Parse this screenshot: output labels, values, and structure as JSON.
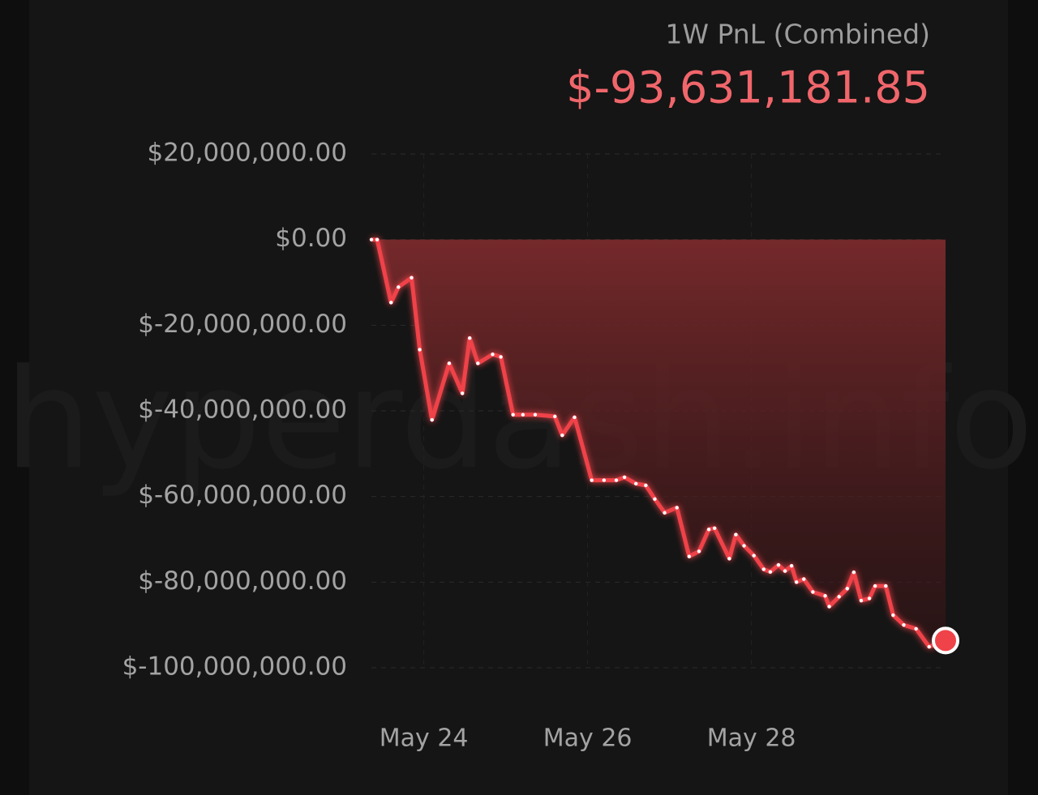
{
  "chart_data": {
    "type": "line",
    "title": "1W PnL (Combined)",
    "subtitle": "$-93,631,181.85",
    "watermark": "hyperdash.info",
    "x": [
      23.36,
      23.43,
      23.6,
      23.69,
      23.85,
      23.95,
      24.1,
      24.31,
      24.47,
      24.56,
      24.66,
      24.84,
      24.94,
      25.09,
      25.21,
      25.36,
      25.6,
      25.69,
      25.84,
      26.05,
      26.2,
      26.35,
      26.45,
      26.59,
      26.71,
      26.82,
      26.94,
      27.09,
      27.24,
      27.36,
      27.48,
      27.55,
      27.73,
      27.81,
      27.91,
      28.03,
      28.15,
      28.23,
      28.33,
      28.41,
      28.49,
      28.55,
      28.64,
      28.75,
      28.9,
      28.95,
      29.07,
      29.17,
      29.25,
      29.34,
      29.44,
      29.51,
      29.64,
      29.73,
      29.86,
      30.01,
      30.17,
      30.37
    ],
    "values": [
      0,
      0,
      -14700000,
      -11100000,
      -8900000,
      -25700000,
      -42100000,
      -28900000,
      -35900000,
      -23000000,
      -28900000,
      -26800000,
      -27400000,
      -40900000,
      -40900000,
      -40900000,
      -41300000,
      -45700000,
      -41500000,
      -56200000,
      -56200000,
      -56200000,
      -55500000,
      -57000000,
      -57400000,
      -60600000,
      -63800000,
      -62600000,
      -74000000,
      -72800000,
      -67700000,
      -67400000,
      -74500000,
      -68900000,
      -71500000,
      -73800000,
      -77000000,
      -77600000,
      -76000000,
      -77400000,
      -76200000,
      -80000000,
      -79300000,
      -82300000,
      -83200000,
      -85700000,
      -83400000,
      -81500000,
      -77700000,
      -84300000,
      -83800000,
      -80900000,
      -80900000,
      -87700000,
      -90000000,
      -90900000,
      -95100000,
      -93631181.85
    ],
    "color": "#ef4349",
    "xlim": [
      23.36,
      30.37
    ],
    "xticks": [
      {
        "value": 24,
        "label": "May 24"
      },
      {
        "value": 26,
        "label": "May 26"
      },
      {
        "value": 28,
        "label": "May 28"
      }
    ],
    "ylim": [
      -100000000,
      20000000
    ],
    "yticks": [
      {
        "value": 20000000,
        "label": "$20,000,000.00"
      },
      {
        "value": 0,
        "label": "$0.00"
      },
      {
        "value": -20000000,
        "label": "$-20,000,000.00"
      },
      {
        "value": -40000000,
        "label": "$-40,000,000.00"
      },
      {
        "value": -60000000,
        "label": "$-60,000,000.00"
      },
      {
        "value": -80000000,
        "label": "$-80,000,000.00"
      },
      {
        "value": -100000000,
        "label": "$-100,000,000.00"
      }
    ],
    "grid": true
  }
}
